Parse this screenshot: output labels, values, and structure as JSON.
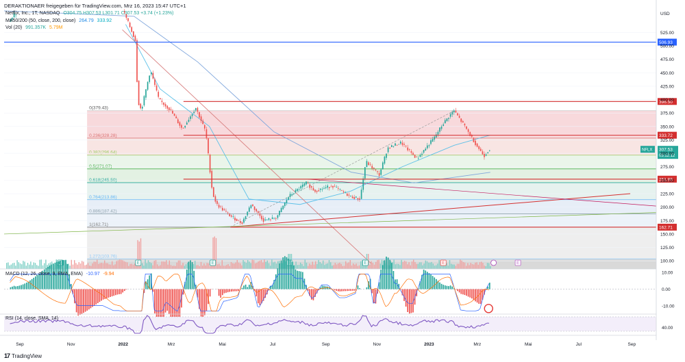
{
  "header": {
    "publisher": "DERAKTIONAER freigegeben für TradingView.com, Mrz 16, 2023 15:47 UTC+1"
  },
  "legend": {
    "symbol": "Netflix, Inc., 1T, NASDAQ",
    "ohlc": "O304.75  H307.53  L301.71  C307.53  +3.74 (+1.23%)",
    "ma_label": "MA50/200 (50, close, 200, close)",
    "ma50": "264.79",
    "ma200": "333.92",
    "vol_label": "Vol (20)",
    "vol_value": "991.357K",
    "vol_ma": "5.79M",
    "macd_label": "MACD (12, 26, close, 9, EMA, EMA)",
    "macd_hist": "-10.97",
    "macd_signal": "-9.94",
    "rsi_label": "RSI (14, close, SMA, 14)"
  },
  "colors": {
    "up": "#26a69a",
    "down": "#ef5350",
    "ma50": "#5bc0e8",
    "ma200": "#7fa6dc",
    "hline_blue": "#2962ff",
    "hline_red": "#d32f2f",
    "rsi": "#7e57c2",
    "macd_line": "#2962ff",
    "signal_line": "#ff6d00"
  },
  "brand": {
    "name": "TradingView"
  },
  "chart_data": {
    "type": "candlestick",
    "currency": "USD",
    "ylim": [
      85,
      570
    ],
    "y_ticks": [
      100,
      125,
      150,
      175,
      200,
      225,
      250,
      275,
      300,
      325,
      350,
      375,
      400,
      425,
      450,
      475,
      500,
      525
    ],
    "x_ticks": [
      "Sep",
      "Nov",
      "2022",
      "Mrz",
      "Mai",
      "Jul",
      "Sep",
      "Nov",
      "2023",
      "Mrz",
      "Mai",
      "Jul",
      "Sep"
    ],
    "price_path": [
      [
        "2021-08-20",
        545
      ],
      [
        "2021-09-05",
        575
      ],
      [
        "2021-11-01",
        690
      ],
      [
        "2021-12-15",
        610
      ],
      [
        "2022-01-05",
        560
      ],
      [
        "2022-01-18",
        510
      ],
      [
        "2022-01-21",
        397
      ],
      [
        "2022-01-25",
        380
      ],
      [
        "2022-02-05",
        455
      ],
      [
        "2022-02-15",
        400
      ],
      [
        "2022-03-01",
        380
      ],
      [
        "2022-03-15",
        345
      ],
      [
        "2022-03-31",
        385
      ],
      [
        "2022-04-12",
        340
      ],
      [
        "2022-04-20",
        226
      ],
      [
        "2022-04-25",
        205
      ],
      [
        "2022-05-10",
        185
      ],
      [
        "2022-05-25",
        170
      ],
      [
        "2022-06-05",
        205
      ],
      [
        "2022-06-20",
        175
      ],
      [
        "2022-07-05",
        180
      ],
      [
        "2022-07-20",
        220
      ],
      [
        "2022-08-10",
        245
      ],
      [
        "2022-08-20",
        230
      ],
      [
        "2022-09-10",
        240
      ],
      [
        "2022-10-01",
        220
      ],
      [
        "2022-10-13",
        215
      ],
      [
        "2022-10-20",
        285
      ],
      [
        "2022-11-05",
        260
      ],
      [
        "2022-11-15",
        310
      ],
      [
        "2022-12-01",
        320
      ],
      [
        "2022-12-20",
        290
      ],
      [
        "2023-01-10",
        330
      ],
      [
        "2023-01-20",
        355
      ],
      [
        "2023-02-02",
        380
      ],
      [
        "2023-02-15",
        350
      ],
      [
        "2023-03-01",
        315
      ],
      [
        "2023-03-10",
        295
      ],
      [
        "2023-03-16",
        307.53
      ]
    ],
    "ma50_last": 264.79,
    "ma200_last": 333.92,
    "horizontal_levels": [
      {
        "value": 506.93,
        "color": "blue",
        "label": "506.93"
      },
      {
        "value": 396.5,
        "color": "red",
        "label": "396.50"
      },
      {
        "value": 333.72,
        "color": "red",
        "label": "333.72"
      },
      {
        "value": 251.99,
        "color": "red",
        "label": "251.99"
      },
      {
        "value": 162.71,
        "color": "red",
        "label": "162.71"
      }
    ],
    "current_price": {
      "value": 307.53,
      "symbol": "NFLX",
      "countdown": "05:12:12"
    },
    "fibonacci": [
      {
        "ratio": "0",
        "value": 379.43
      },
      {
        "ratio": "0.236",
        "value": 328.28
      },
      {
        "ratio": "0.382",
        "value": 296.64
      },
      {
        "ratio": "0.5",
        "value": 271.07
      },
      {
        "ratio": "0.618",
        "value": 245.5
      },
      {
        "ratio": "0.764",
        "value": 213.86
      },
      {
        "ratio": "0.886",
        "value": 187.42
      },
      {
        "ratio": "1",
        "value": 162.71
      },
      {
        "ratio": "1.272",
        "value": 103.76
      }
    ],
    "macd": {
      "ylim": [
        -14,
        12
      ],
      "ticks": [
        10.0,
        0.0,
        -10.0
      ]
    },
    "rsi": {
      "ticks": [
        40.0
      ]
    }
  }
}
